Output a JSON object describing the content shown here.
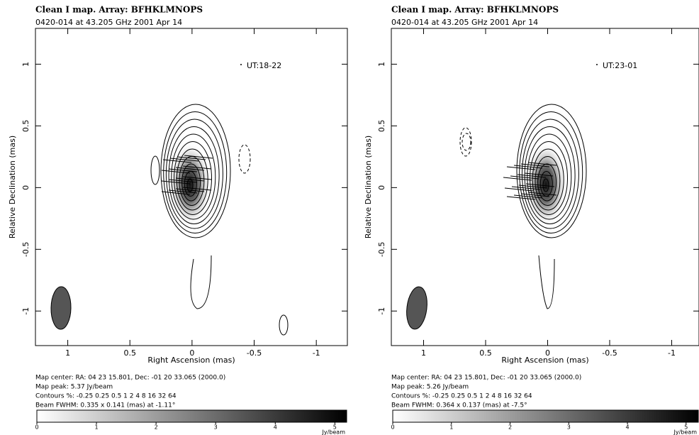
{
  "panels": [
    {
      "title": "Clean I map.  Array:  BFHKLMNOPS",
      "subtitle": "0420-014 at 43.205 GHz 2001 Apr 14",
      "ut_label": "UT:18-22",
      "x_label": "Right Ascension  (mas)",
      "y_label": "Relative Declination  (mas)",
      "xlim": [
        1.26,
        -1.25
      ],
      "xticks": [
        1,
        0.5,
        0,
        -0.5,
        -1
      ],
      "ylim": [
        -1.28,
        1.29
      ],
      "yticks": [
        1,
        0.5,
        0,
        -0.5,
        -1
      ],
      "footer": [
        "Map center:  RA: 04 23 15.801,  Dec: -01 20 33.065 (2000.0)",
        "Map peak: 5.37 Jy/beam",
        "Contours %: -0.25 0.25 0.5 1 2 4 8 16 32 64",
        "Beam FWHM: 0.335 x 0.141 (mas) at -1.11°"
      ],
      "colorbar_lim": [
        0,
        5.21
      ],
      "colorbar_ticks": [
        0,
        1,
        2,
        3,
        4,
        5
      ],
      "colorbar_label": "Jy/beam"
    },
    {
      "title": "Clean I map.  Array:  BFHKLMNOPS",
      "subtitle": "0420-014 at 43.205 GHz 2001 Apr 14",
      "ut_label": "UT:23-01",
      "x_label": "Right Ascension  (mas)",
      "y_label": "Relative Declination  (mas)",
      "xlim": [
        1.26,
        -1.22
      ],
      "xticks": [
        1,
        0.5,
        0,
        -0.5,
        -1
      ],
      "ylim": [
        -1.28,
        1.29
      ],
      "yticks": [
        1,
        0.5,
        0,
        -0.5,
        -1
      ],
      "footer": [
        "Map center:  RA: 04 23 15.801,  Dec: -01 20 33.065 (2000.0)",
        "Map peak: 5.26 Jy/beam",
        "Contours %: -0.25 0.25 0.5 1 2 4 8 16 32 64",
        "Beam FWHM: 0.364 x 0.137 (mas) at -7.5°"
      ],
      "colorbar_lim": [
        0,
        5.22
      ],
      "colorbar_ticks": [
        0,
        1,
        2,
        3,
        4,
        5
      ],
      "colorbar_label": "Jy/beam"
    }
  ]
}
